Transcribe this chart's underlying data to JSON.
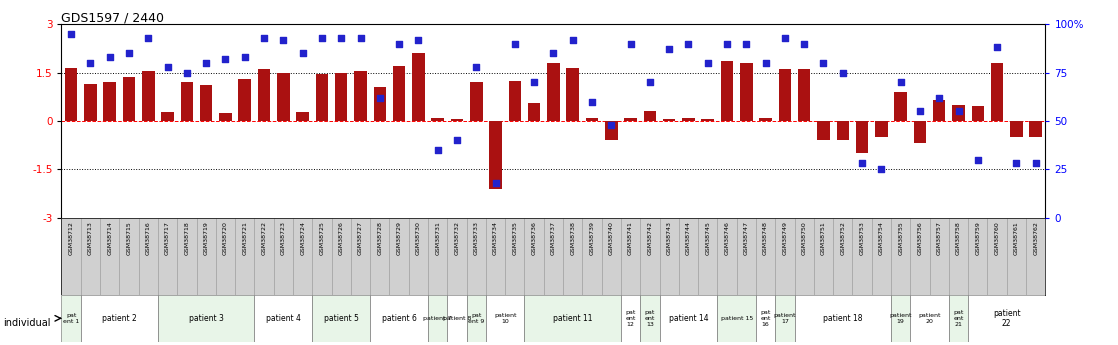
{
  "title": "GDS1597 / 2440",
  "gsm_labels": [
    "GSM38712",
    "GSM38713",
    "GSM38714",
    "GSM38715",
    "GSM38716",
    "GSM38717",
    "GSM38718",
    "GSM38719",
    "GSM38720",
    "GSM38721",
    "GSM38722",
    "GSM38723",
    "GSM38724",
    "GSM38725",
    "GSM38726",
    "GSM38727",
    "GSM38728",
    "GSM38729",
    "GSM38730",
    "GSM38731",
    "GSM38732",
    "GSM38733",
    "GSM38734",
    "GSM38735",
    "GSM38736",
    "GSM38737",
    "GSM38738",
    "GSM38739",
    "GSM38740",
    "GSM38741",
    "GSM38742",
    "GSM38743",
    "GSM38744",
    "GSM38745",
    "GSM38746",
    "GSM38747",
    "GSM38748",
    "GSM38749",
    "GSM38750",
    "GSM38751",
    "GSM38752",
    "GSM38753",
    "GSM38754",
    "GSM38755",
    "GSM38756",
    "GSM38757",
    "GSM38758",
    "GSM38759",
    "GSM38760",
    "GSM38761",
    "GSM38762"
  ],
  "log2_ratio": [
    1.65,
    1.15,
    1.2,
    1.35,
    1.55,
    0.28,
    1.2,
    1.1,
    0.25,
    1.3,
    1.6,
    1.5,
    0.28,
    1.45,
    1.5,
    1.55,
    1.05,
    1.7,
    2.1,
    0.08,
    0.07,
    1.2,
    -2.1,
    1.25,
    0.55,
    1.8,
    1.65,
    0.1,
    -0.6,
    0.08,
    0.3,
    0.07,
    0.1,
    0.06,
    1.85,
    1.8,
    0.08,
    1.6,
    1.6,
    -0.6,
    -0.6,
    -1.0,
    -0.5,
    0.9,
    -0.7,
    0.65,
    0.5,
    0.45,
    1.8,
    -0.5,
    -0.5
  ],
  "percentile": [
    95,
    80,
    83,
    85,
    93,
    78,
    75,
    80,
    82,
    83,
    93,
    92,
    85,
    93,
    93,
    93,
    62,
    90,
    92,
    35,
    40,
    78,
    18,
    90,
    70,
    85,
    92,
    60,
    48,
    90,
    70,
    87,
    90,
    80,
    90,
    90,
    80,
    93,
    90,
    80,
    75,
    28,
    25,
    70,
    55,
    62,
    55,
    30,
    88,
    28,
    28
  ],
  "patients": [
    {
      "label": "pat\nent 1",
      "start": 0,
      "end": 1,
      "color": "#e8f5e8"
    },
    {
      "label": "patient 2",
      "start": 1,
      "end": 5,
      "color": "#ffffff"
    },
    {
      "label": "patient 3",
      "start": 5,
      "end": 10,
      "color": "#e8f5e8"
    },
    {
      "label": "patient 4",
      "start": 10,
      "end": 13,
      "color": "#ffffff"
    },
    {
      "label": "patient 5",
      "start": 13,
      "end": 16,
      "color": "#e8f5e8"
    },
    {
      "label": "patient 6",
      "start": 16,
      "end": 19,
      "color": "#ffffff"
    },
    {
      "label": "patient 7",
      "start": 19,
      "end": 20,
      "color": "#e8f5e8"
    },
    {
      "label": "patient 8",
      "start": 20,
      "end": 21,
      "color": "#ffffff"
    },
    {
      "label": "pat\nent 9",
      "start": 21,
      "end": 22,
      "color": "#e8f5e8"
    },
    {
      "label": "patient\n10",
      "start": 22,
      "end": 24,
      "color": "#ffffff"
    },
    {
      "label": "patient 11",
      "start": 24,
      "end": 29,
      "color": "#e8f5e8"
    },
    {
      "label": "pat\nent\n12",
      "start": 29,
      "end": 30,
      "color": "#ffffff"
    },
    {
      "label": "pat\nent\n13",
      "start": 30,
      "end": 31,
      "color": "#e8f5e8"
    },
    {
      "label": "patient 14",
      "start": 31,
      "end": 34,
      "color": "#ffffff"
    },
    {
      "label": "patient 15",
      "start": 34,
      "end": 36,
      "color": "#e8f5e8"
    },
    {
      "label": "pat\nent\n16",
      "start": 36,
      "end": 37,
      "color": "#ffffff"
    },
    {
      "label": "patient\n17",
      "start": 37,
      "end": 38,
      "color": "#e8f5e8"
    },
    {
      "label": "patient 18",
      "start": 38,
      "end": 43,
      "color": "#ffffff"
    },
    {
      "label": "patient\n19",
      "start": 43,
      "end": 44,
      "color": "#e8f5e8"
    },
    {
      "label": "patient\n20",
      "start": 44,
      "end": 46,
      "color": "#ffffff"
    },
    {
      "label": "pat\nent\n21",
      "start": 46,
      "end": 47,
      "color": "#e8f5e8"
    },
    {
      "label": "patient\n22",
      "start": 47,
      "end": 51,
      "color": "#ffffff"
    }
  ],
  "bar_color": "#aa1111",
  "dot_color": "#2222cc",
  "ylim": [
    -3,
    3
  ],
  "yticks_left": [
    -3,
    -1.5,
    0,
    1.5,
    3
  ],
  "yticks_right": [
    0,
    25,
    50,
    75,
    100
  ],
  "background_color": "#ffffff",
  "gsm_bg": "#d0d0d0",
  "individual_label": "individual"
}
